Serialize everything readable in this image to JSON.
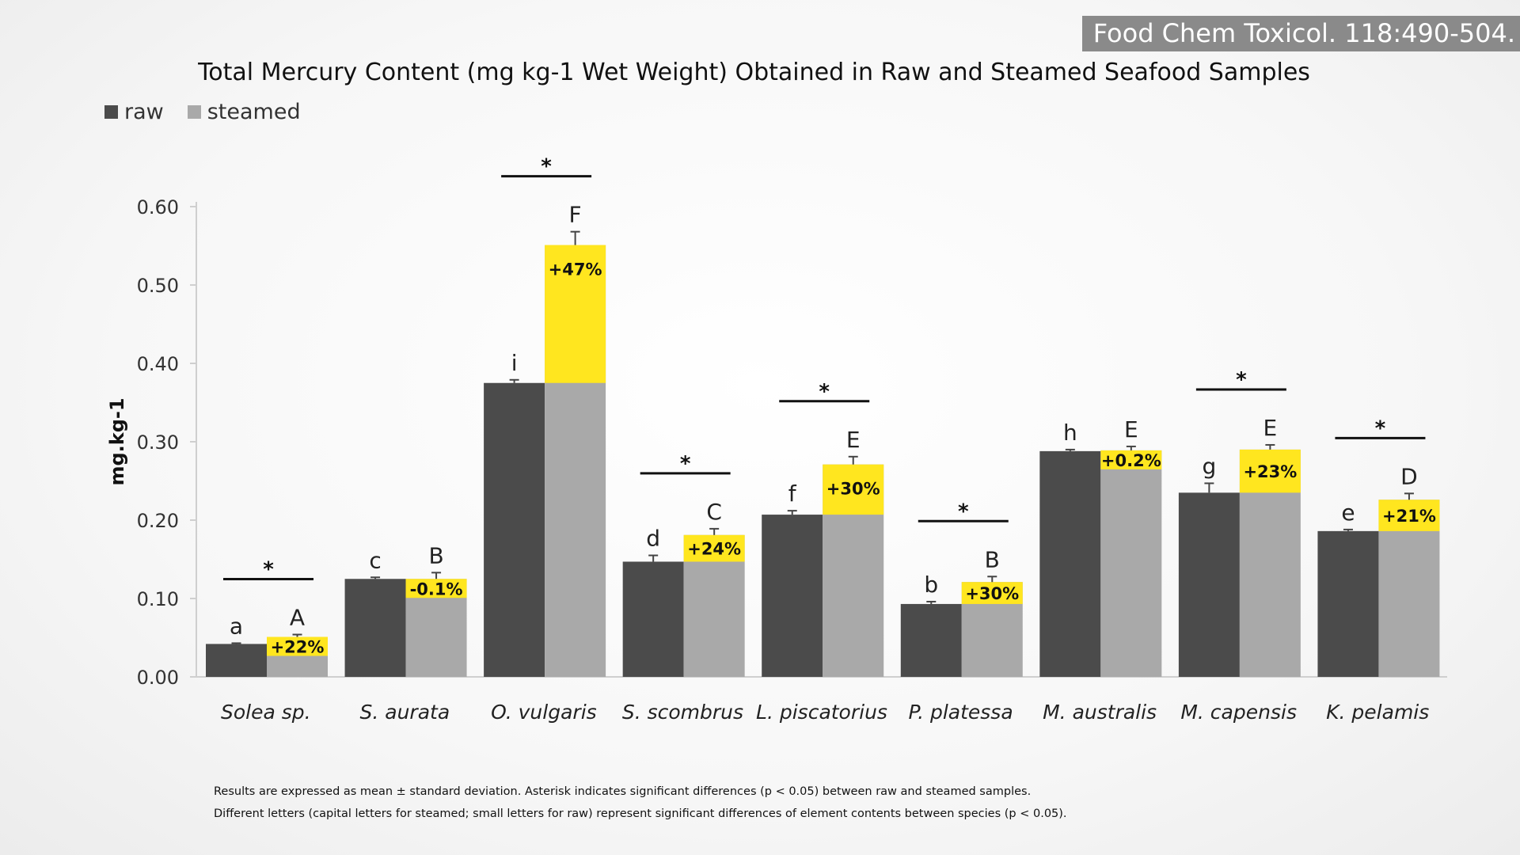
{
  "citation": "Food Chem Toxicol. 118:490-504.",
  "legend": {
    "raw": "raw",
    "steamed": "steamed"
  },
  "colors": {
    "raw": "#4b4b4b",
    "steamed": "#a9a9a9",
    "increase": "#ffe61f"
  },
  "notes": [
    "Results are expressed as mean ± standard deviation. Asterisk indicates significant differences (p < 0.05) between raw and steamed samples.",
    "Different letters (capital letters for steamed; small letters for raw) represent significant differences of element contents between species (p < 0.05)."
  ],
  "chart_data": {
    "type": "bar",
    "title": "Total Mercury Content (mg kg-1 Wet Weight) Obtained in Raw and Steamed Seafood Samples",
    "ylabel": "mg.kg-1",
    "ylim": [
      0,
      0.6
    ],
    "yticks": [
      "0.00",
      "0.10",
      "0.20",
      "0.30",
      "0.40",
      "0.50",
      "0.60"
    ],
    "legend_position": "top-left",
    "categories": [
      "Solea sp.",
      "S. aurata",
      "O. vulgaris",
      "S. scombrus",
      "L. piscatorius",
      "P. platessa",
      "M. australis",
      "M. capensis",
      "K. pelamis"
    ],
    "series": [
      {
        "name": "raw",
        "values": [
          0.042,
          0.125,
          0.375,
          0.147,
          0.207,
          0.093,
          0.288,
          0.235,
          0.186
        ],
        "errors": [
          0.001,
          0.002,
          0.004,
          0.008,
          0.005,
          0.003,
          0.002,
          0.012,
          0.002
        ],
        "letters": [
          "a",
          "c",
          "i",
          "d",
          "f",
          "b",
          "h",
          "g",
          "e"
        ]
      },
      {
        "name": "steamed",
        "values": [
          0.051,
          0.125,
          0.551,
          0.181,
          0.271,
          0.121,
          0.289,
          0.29,
          0.226
        ],
        "errors": [
          0.003,
          0.008,
          0.017,
          0.008,
          0.01,
          0.007,
          0.005,
          0.006,
          0.008
        ],
        "letters": [
          "A",
          "B",
          "F",
          "C",
          "E",
          "B",
          "E",
          "E",
          "D"
        ]
      }
    ],
    "change_labels": [
      "+22%",
      "-0.1%",
      "+47%",
      "+24%",
      "+30%",
      "+30%",
      "+0.2%",
      "+23%",
      "+21%"
    ],
    "significant": [
      true,
      false,
      true,
      true,
      true,
      true,
      false,
      true,
      true
    ],
    "significance_marker": "*"
  }
}
